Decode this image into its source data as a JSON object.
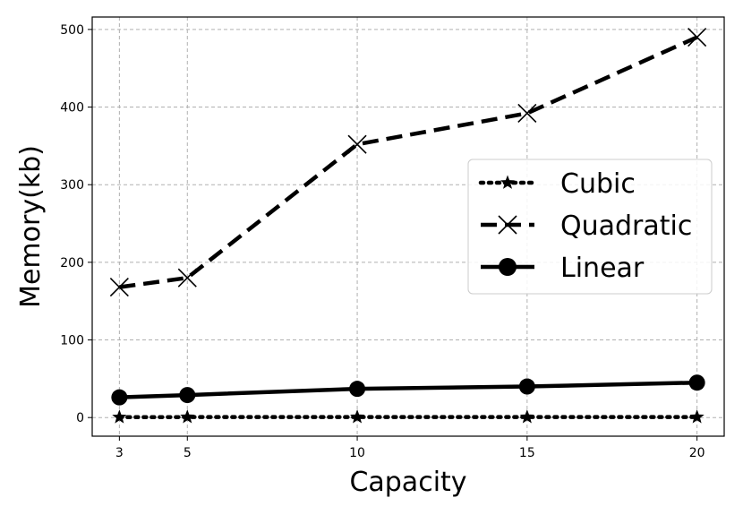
{
  "chart_data": {
    "type": "line",
    "title": "",
    "xlabel": "Capacity",
    "ylabel": "Memory(kb)",
    "x": [
      3,
      5,
      10,
      15,
      20
    ],
    "x_ticks": [
      "3",
      "5",
      "10",
      "15",
      "20"
    ],
    "y_ticks": [
      "0",
      "100",
      "200",
      "300",
      "400",
      "500"
    ],
    "xlim": [
      2.2,
      20.8
    ],
    "ylim": [
      -24,
      516
    ],
    "grid": true,
    "legend_position": "right",
    "series": [
      {
        "name": "Cubic",
        "values": [
          0.5,
          0.6,
          0.6,
          0.6,
          0.6
        ],
        "line_style": "dotted",
        "marker": "star",
        "color": "#000000"
      },
      {
        "name": "Quadratic",
        "values": [
          168,
          180,
          352,
          392,
          490
        ],
        "line_style": "dashed",
        "marker": "x",
        "color": "#000000"
      },
      {
        "name": "Linear",
        "values": [
          26,
          29,
          37,
          40,
          45
        ],
        "line_style": "solid",
        "marker": "circle",
        "color": "#000000"
      }
    ]
  }
}
